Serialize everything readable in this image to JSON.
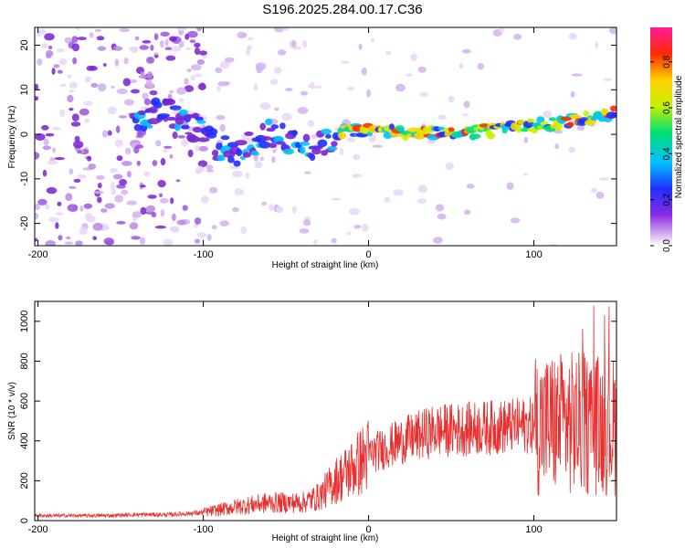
{
  "title": "S196.2025.284.00.17.C36",
  "chart_data": [
    {
      "type": "heatmap",
      "name": "spectrogram",
      "xlabel": "Height of straight line (km)",
      "ylabel": "Frequency (Hz)",
      "xlim": [
        -202,
        150
      ],
      "ylim": [
        -25,
        24
      ],
      "xticks": [
        -200,
        -100,
        0,
        100
      ],
      "yticks": [
        -20,
        -10,
        0,
        10,
        20
      ],
      "colorbar": {
        "label": "Normalized spectral amplitude",
        "range": [
          0,
          0.95
        ],
        "ticks": [
          0,
          0.2,
          0.4,
          0.6,
          0.8
        ],
        "colors": [
          "#ffffff",
          "#cfa6f0",
          "#8a2be2",
          "#2030ff",
          "#00c0ff",
          "#00e070",
          "#c8f000",
          "#ffd000",
          "#ff2a00",
          "#ff1a9a"
        ]
      },
      "ridge": {
        "description": "dominant frequency track",
        "x": [
          -140,
          -120,
          -100,
          -90,
          -80,
          -70,
          -60,
          -50,
          -40,
          -30,
          -20,
          -10,
          0,
          20,
          40,
          60,
          80,
          100,
          120,
          140,
          150
        ],
        "y": [
          4,
          5,
          0,
          -3,
          -4,
          -2,
          0,
          -1,
          -2,
          -3,
          0,
          1,
          1,
          0.5,
          0.5,
          0.5,
          1,
          2,
          3,
          4,
          5
        ]
      }
    },
    {
      "type": "line",
      "name": "snr",
      "xlabel": "Height of straight line (km)",
      "ylabel": "SNR (10 * v/v)",
      "xlim": [
        -202,
        150
      ],
      "ylim": [
        0,
        1100
      ],
      "xticks": [
        -200,
        -100,
        0,
        100
      ],
      "yticks": [
        0,
        200,
        400,
        600,
        800,
        1000
      ],
      "color": "#e83030",
      "envelope": {
        "x": [
          -202,
          -160,
          -140,
          -120,
          -100,
          -80,
          -60,
          -40,
          -30,
          -20,
          -10,
          0,
          20,
          40,
          60,
          80,
          100,
          120,
          140,
          150
        ],
        "y": [
          25,
          25,
          30,
          30,
          40,
          70,
          90,
          90,
          120,
          200,
          260,
          330,
          400,
          450,
          460,
          470,
          480,
          490,
          480,
          470
        ]
      }
    }
  ]
}
